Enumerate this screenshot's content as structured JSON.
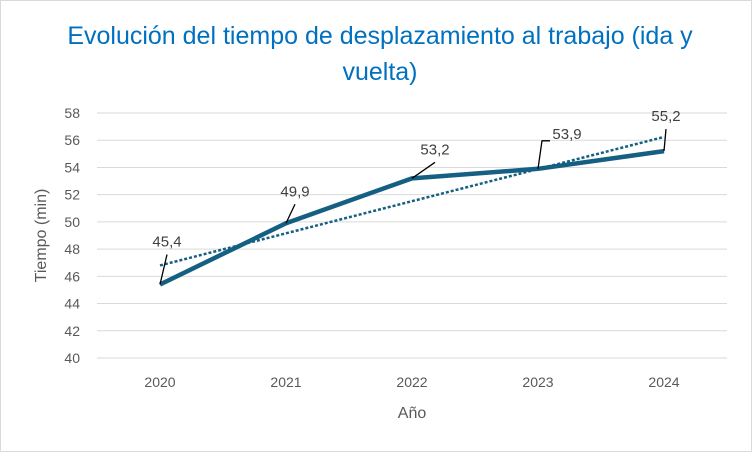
{
  "chart_data": {
    "type": "line",
    "title": "Evolución del tiempo de desplazamiento al trabajo (ida y vuelta)",
    "xlabel": "Año",
    "ylabel": "Tiempo (min)",
    "categories": [
      "2020",
      "2021",
      "2022",
      "2023",
      "2024"
    ],
    "series": [
      {
        "values": [
          45.4,
          49.9,
          53.2,
          53.9,
          55.2
        ],
        "color": "#156082"
      }
    ],
    "data_labels": [
      "45,4",
      "49,9",
      "53,2",
      "53,9",
      "55,2"
    ],
    "trendline": {
      "type": "linear",
      "style": "dotted",
      "color": "#156082"
    },
    "ylim": [
      40,
      58
    ],
    "yticks": [
      "40",
      "42",
      "44",
      "46",
      "48",
      "50",
      "52",
      "54",
      "56",
      "58"
    ],
    "grid": "horizontal",
    "legend": "none"
  }
}
